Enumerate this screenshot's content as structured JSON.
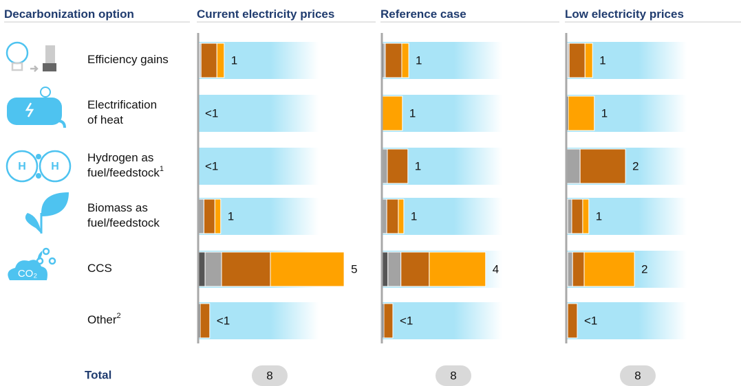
{
  "chart_data": {
    "type": "bar",
    "header": "Decarbonization option",
    "options": [
      {
        "lines": [
          "Efficiency gains"
        ]
      },
      {
        "lines": [
          "Electrification",
          "of heat"
        ]
      },
      {
        "lines": [
          "Hydrogen as",
          "fuel/feedstock"
        ],
        "sup": "1"
      },
      {
        "lines": [
          "Biomass as",
          "fuel/feedstock"
        ]
      },
      {
        "lines": [
          "CCS"
        ]
      },
      {
        "lines": [
          "Other"
        ],
        "sup": "2"
      }
    ],
    "total_label": "Total",
    "panels": [
      {
        "title": "Current electricity prices",
        "series": [
          {
            "color": "#555555",
            "values": [
              0.05,
              0,
              0,
              0,
              0.24,
              0.07
            ]
          },
          {
            "color": "#a3a3a3",
            "values": [
              0.05,
              0,
              0,
              0.2,
              0.57,
              0
            ]
          },
          {
            "color": "#c0670f",
            "values": [
              0.55,
              0,
              0,
              0.38,
              1.69,
              0.33
            ]
          },
          {
            "color": "#ffa200",
            "values": [
              0.25,
              0,
              0,
              0.2,
              2.55,
              0
            ]
          }
        ],
        "values": [
          1,
          0.5,
          0.5,
          1,
          5,
          0.5
        ],
        "value_labels": [
          "1",
          "<1",
          "<1",
          "1",
          "5",
          "<1"
        ],
        "total": 8
      },
      {
        "title": "Reference case",
        "series": [
          {
            "color": "#555555",
            "values": [
              0.07,
              0,
              0,
              0,
              0.21,
              0.07
            ]
          },
          {
            "color": "#a3a3a3",
            "values": [
              0.05,
              0,
              0.19,
              0.17,
              0.45,
              0
            ]
          },
          {
            "color": "#c0670f",
            "values": [
              0.57,
              0,
              0.71,
              0.4,
              0.98,
              0.31
            ]
          },
          {
            "color": "#ffa200",
            "values": [
              0.24,
              0.71,
              0,
              0.19,
              1.95,
              0
            ]
          }
        ],
        "values": [
          1,
          1,
          1,
          1,
          4,
          0.5
        ],
        "value_labels": [
          "1",
          "1",
          "1",
          "1",
          "4",
          "<1"
        ],
        "total": 8
      },
      {
        "title": "Low electricity prices",
        "series": [
          {
            "color": "#555555",
            "values": [
              0.05,
              0.07,
              0,
              0.05,
              0.05,
              0.05
            ]
          },
          {
            "color": "#a3a3a3",
            "values": [
              0.05,
              0,
              0.48,
              0.14,
              0.17,
              0
            ]
          },
          {
            "color": "#c0670f",
            "values": [
              0.55,
              0,
              1.57,
              0.38,
              0.4,
              0.33
            ]
          },
          {
            "color": "#ffa200",
            "values": [
              0.26,
              0.9,
              0,
              0.21,
              1.74,
              0
            ]
          }
        ],
        "values": [
          1,
          1,
          2,
          1,
          2,
          0.5
        ],
        "value_labels": [
          "1",
          "1",
          "2",
          "1",
          "2",
          "<1"
        ],
        "total": 8
      }
    ]
  }
}
